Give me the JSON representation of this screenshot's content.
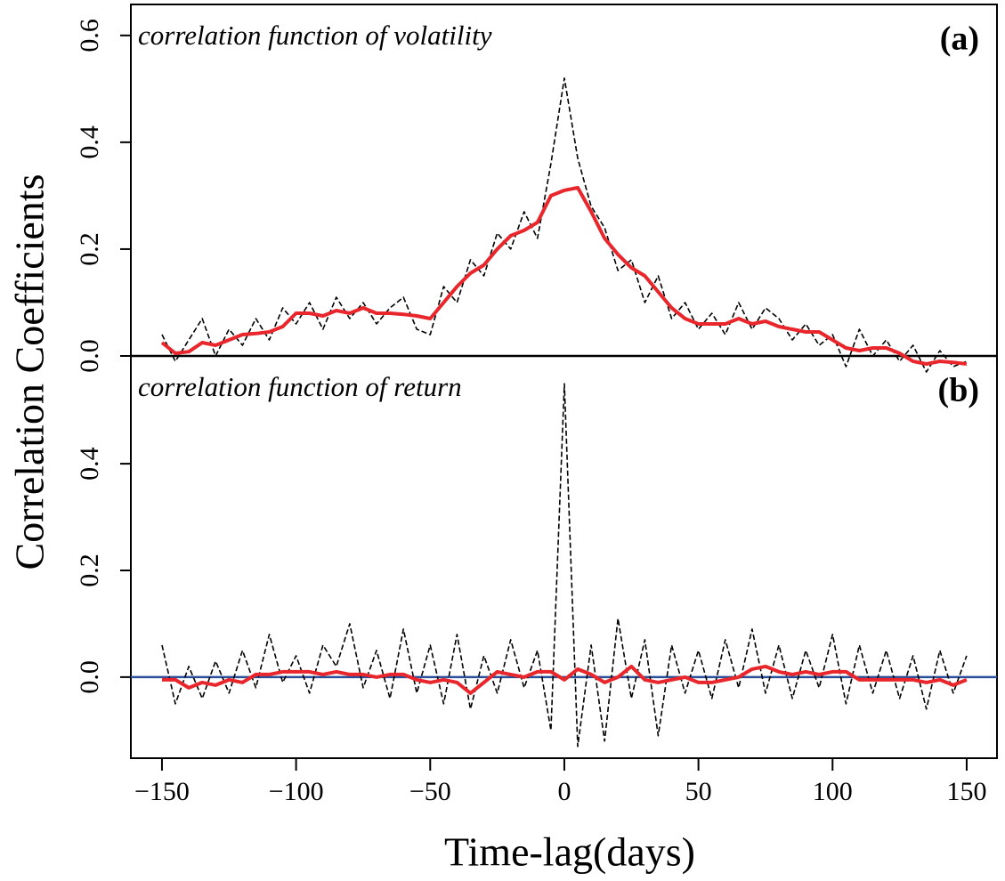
{
  "chart_data": [
    {
      "type": "line",
      "annotation": "correlation function of volatility",
      "panel_label": "(a)",
      "ylabel": "Correlation Coefficients",
      "xlim": [
        -161.6,
        161.3
      ],
      "ylim": [
        0,
        0.658
      ],
      "yticks": [
        {
          "value": 0,
          "label": "0.0"
        },
        {
          "value": 0.2,
          "label": "0.2"
        },
        {
          "value": 0.4,
          "label": "0.4"
        },
        {
          "value": 0.6,
          "label": "0.6"
        }
      ],
      "hline": {
        "value": 0,
        "color": "#000000"
      },
      "x": [
        -150,
        -145,
        -140,
        -135,
        -130,
        -125,
        -120,
        -115,
        -110,
        -105,
        -100,
        -95,
        -90,
        -85,
        -80,
        -75,
        -70,
        -65,
        -60,
        -55,
        -50,
        -45,
        -40,
        -35,
        -30,
        -25,
        -20,
        -15,
        -10,
        -5,
        0,
        5,
        10,
        15,
        20,
        25,
        30,
        35,
        40,
        45,
        50,
        55,
        60,
        65,
        70,
        75,
        80,
        85,
        90,
        95,
        100,
        105,
        110,
        115,
        120,
        125,
        130,
        135,
        140,
        145,
        150
      ],
      "series": [
        {
          "color": "#000000",
          "dashed": true,
          "values": [
            0.04,
            -0.01,
            0.03,
            0.07,
            0,
            0.05,
            0.02,
            0.07,
            0.03,
            0.09,
            0.06,
            0.1,
            0.05,
            0.11,
            0.07,
            0.1,
            0.06,
            0.09,
            0.11,
            0.05,
            0.04,
            0.13,
            0.1,
            0.18,
            0.15,
            0.23,
            0.2,
            0.27,
            0.22,
            0.36,
            0.52,
            0.37,
            0.28,
            0.24,
            0.16,
            0.18,
            0.1,
            0.15,
            0.07,
            0.1,
            0.05,
            0.08,
            0.04,
            0.1,
            0.05,
            0.09,
            0.07,
            0.03,
            0.06,
            0.02,
            0.04,
            -0.02,
            0.05,
            0,
            0.03,
            -0.01,
            0.02,
            -0.03,
            0.01,
            -0.02,
            -0.01
          ]
        },
        {
          "color": "#e8262b",
          "dashed": false,
          "values": [
            0.025,
            0.005,
            0.008,
            0.025,
            0.02,
            0.03,
            0.04,
            0.042,
            0.045,
            0.055,
            0.08,
            0.08,
            0.075,
            0.085,
            0.08,
            0.09,
            0.08,
            0.08,
            0.078,
            0.075,
            0.07,
            0.1,
            0.13,
            0.155,
            0.17,
            0.2,
            0.225,
            0.235,
            0.25,
            0.3,
            0.31,
            0.315,
            0.27,
            0.22,
            0.19,
            0.165,
            0.15,
            0.12,
            0.09,
            0.07,
            0.06,
            0.06,
            0.06,
            0.07,
            0.06,
            0.065,
            0.055,
            0.05,
            0.045,
            0.045,
            0.03,
            0.015,
            0.01,
            0.015,
            0.015,
            0.005,
            -0.01,
            -0.015,
            -0.01,
            -0.012,
            -0.015
          ]
        }
      ]
    },
    {
      "type": "line",
      "annotation": "correlation function of return",
      "panel_label": "(b)",
      "xlabel": "Time-lag(days)",
      "xlim": [
        -161.6,
        161.3
      ],
      "ylim": [
        -0.152,
        0.602
      ],
      "xticks": [
        {
          "value": -150,
          "label": "−150"
        },
        {
          "value": -100,
          "label": "−100"
        },
        {
          "value": -50,
          "label": "−50"
        },
        0,
        50,
        100,
        150
      ],
      "yticks": [
        {
          "value": 0,
          "label": "0.0"
        },
        {
          "value": 0.2,
          "label": "0.2"
        },
        {
          "value": 0.4,
          "label": "0.4"
        }
      ],
      "hline": {
        "value": 0,
        "color": "#2a4f9a"
      },
      "x": [
        -150,
        -145,
        -140,
        -135,
        -130,
        -125,
        -120,
        -115,
        -110,
        -105,
        -100,
        -95,
        -90,
        -85,
        -80,
        -75,
        -70,
        -65,
        -60,
        -55,
        -50,
        -45,
        -40,
        -35,
        -30,
        -25,
        -20,
        -15,
        -10,
        -5,
        0,
        5,
        10,
        15,
        20,
        25,
        30,
        35,
        40,
        45,
        50,
        55,
        60,
        65,
        70,
        75,
        80,
        85,
        90,
        95,
        100,
        105,
        110,
        115,
        120,
        125,
        130,
        135,
        140,
        145,
        150
      ],
      "series": [
        {
          "color": "#000000",
          "dashed": true,
          "values": [
            0.06,
            -0.05,
            0.02,
            -0.04,
            0.03,
            -0.03,
            0.05,
            -0.02,
            0.08,
            -0.01,
            0.04,
            -0.03,
            0.06,
            0.02,
            0.1,
            -0.02,
            0.05,
            -0.04,
            0.09,
            -0.03,
            0.06,
            -0.05,
            0.08,
            -0.06,
            0.04,
            -0.03,
            0.07,
            -0.02,
            0.05,
            -0.1,
            0.55,
            -0.13,
            0.06,
            -0.12,
            0.11,
            -0.04,
            0.07,
            -0.11,
            0.06,
            -0.03,
            0.05,
            -0.04,
            0.07,
            -0.02,
            0.09,
            -0.03,
            0.06,
            -0.04,
            0.05,
            -0.02,
            0.08,
            -0.05,
            0.06,
            -0.03,
            0.05,
            -0.04,
            0.04,
            -0.06,
            0.05,
            -0.03,
            0.04
          ]
        },
        {
          "color": "#e8262b",
          "dashed": false,
          "values": [
            -0.005,
            -0.005,
            -0.02,
            -0.01,
            -0.015,
            -0.005,
            -0.01,
            0.005,
            0.005,
            0.01,
            0.01,
            0.01,
            0.005,
            0.01,
            0.005,
            0.005,
            0,
            0.005,
            0.005,
            -0.005,
            -0.01,
            -0.005,
            -0.01,
            -0.03,
            -0.01,
            0.01,
            0.005,
            0,
            0.01,
            0.01,
            -0.005,
            0.015,
            0.005,
            -0.01,
            0,
            0.02,
            -0.005,
            -0.01,
            -0.005,
            0,
            -0.01,
            -0.01,
            -0.005,
            0,
            0.015,
            0.02,
            0.01,
            0.005,
            0.01,
            0.005,
            0.01,
            0.01,
            -0.005,
            -0.005,
            -0.005,
            -0.005,
            -0.005,
            -0.01,
            -0.005,
            -0.015,
            -0.005
          ]
        }
      ]
    }
  ]
}
